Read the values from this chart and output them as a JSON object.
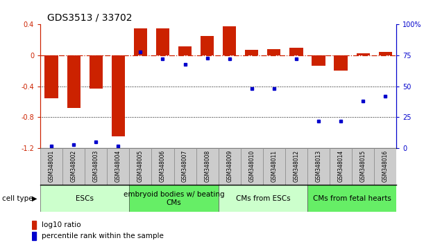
{
  "title": "GDS3513 / 33702",
  "samples": [
    "GSM348001",
    "GSM348002",
    "GSM348003",
    "GSM348004",
    "GSM348005",
    "GSM348006",
    "GSM348007",
    "GSM348008",
    "GSM348009",
    "GSM348010",
    "GSM348011",
    "GSM348012",
    "GSM348013",
    "GSM348014",
    "GSM348015",
    "GSM348016"
  ],
  "log10_ratio": [
    -0.55,
    -0.68,
    -0.43,
    -1.05,
    0.35,
    0.35,
    0.12,
    0.25,
    0.38,
    0.07,
    0.08,
    0.1,
    -0.13,
    -0.2,
    0.03,
    0.05
  ],
  "percentile_rank": [
    2,
    3,
    5,
    2,
    78,
    72,
    68,
    73,
    72,
    48,
    48,
    72,
    22,
    22,
    38,
    42
  ],
  "ylim_left": [
    -1.2,
    0.4
  ],
  "ylim_right": [
    0,
    100
  ],
  "bar_color": "#cc2200",
  "dot_color": "#0000cc",
  "zero_line_color": "#cc2200",
  "dotted_line_color": "#000000",
  "cell_groups": [
    {
      "label": "ESCs",
      "start": 0,
      "end": 3,
      "color": "#ccffcc"
    },
    {
      "label": "embryoid bodies w/ beating\nCMs",
      "start": 4,
      "end": 7,
      "color": "#66ee66"
    },
    {
      "label": "CMs from ESCs",
      "start": 8,
      "end": 11,
      "color": "#ccffcc"
    },
    {
      "label": "CMs from fetal hearts",
      "start": 12,
      "end": 15,
      "color": "#66ee66"
    }
  ],
  "left_axis_color": "#cc2200",
  "right_axis_color": "#0000cc",
  "title_fontsize": 10,
  "tick_fontsize": 7,
  "legend_fontsize": 7.5,
  "cell_type_fontsize": 7.5,
  "sample_label_fontsize": 5.5,
  "group_label_fontsize": 7.5
}
